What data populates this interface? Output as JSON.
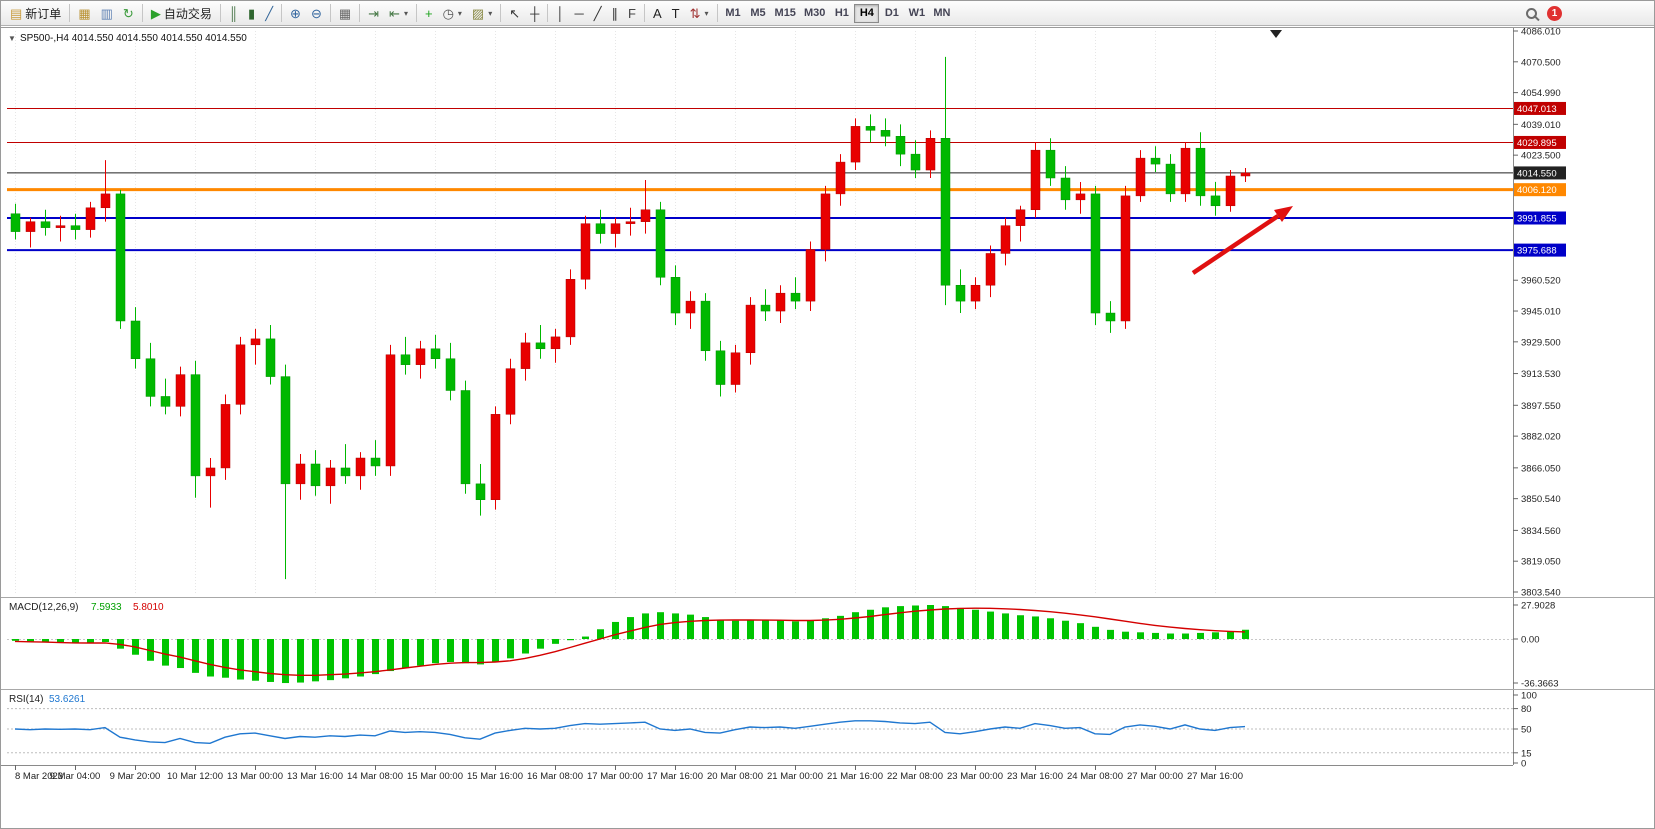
{
  "toolbar": {
    "notification_count": "1",
    "groups": [
      {
        "buttons": [
          {
            "name": "new-order",
            "glyph": "▤",
            "glyph_color": "#c89b3c",
            "label": "新订单"
          }
        ]
      },
      {
        "buttons": [
          {
            "name": "market-watch",
            "glyph": "▦",
            "glyph_color": "#b8902f"
          },
          {
            "name": "data-window",
            "glyph": "▥",
            "glyph_color": "#5f82b4"
          },
          {
            "name": "navigator",
            "glyph": "↻",
            "glyph_color": "#3a9a3a"
          }
        ]
      },
      {
        "buttons": [
          {
            "name": "autotrading",
            "glyph": "▶",
            "glyph_color": "#2ca02c",
            "label": "自动交易"
          }
        ]
      },
      {
        "buttons": [
          {
            "name": "bar-chart-type",
            "glyph": "║",
            "glyph_color": "#4f7a4f"
          },
          {
            "name": "candlestick-chart-type",
            "glyph": "▮",
            "glyph_color": "#2f662f"
          },
          {
            "name": "line-chart-type",
            "glyph": "╱",
            "glyph_color": "#336699"
          }
        ]
      },
      {
        "buttons": [
          {
            "name": "zoom-in",
            "glyph": "⊕",
            "glyph_color": "#33669f"
          },
          {
            "name": "zoom-out",
            "glyph": "⊖",
            "glyph_color": "#33669f"
          }
        ]
      },
      {
        "buttons": [
          {
            "name": "tile-windows",
            "glyph": "▦",
            "glyph_color": "#666666"
          }
        ]
      },
      {
        "buttons": [
          {
            "name": "auto-scroll",
            "glyph": "⇥",
            "glyph_color": "#447744"
          },
          {
            "name": "chart-shift",
            "glyph": "⇤",
            "glyph_color": "#447744",
            "dropdown": true
          }
        ]
      },
      {
        "buttons": [
          {
            "name": "indicators",
            "glyph": "+",
            "glyph_color": "#1fa41f"
          },
          {
            "name": "periods",
            "glyph": "◷",
            "glyph_color": "#555555",
            "dropdown": true
          },
          {
            "name": "templates",
            "glyph": "▨",
            "glyph_color": "#8a8a46",
            "dropdown": true
          }
        ]
      },
      {
        "buttons": [
          {
            "name": "cursor",
            "glyph": "↖",
            "glyph_color": "#333333"
          },
          {
            "name": "crosshair",
            "glyph": "┼",
            "glyph_color": "#333333"
          }
        ]
      },
      {
        "buttons": [
          {
            "name": "vertical-line",
            "glyph": "│",
            "glyph_color": "#333333"
          },
          {
            "name": "horizontal-line",
            "glyph": "─",
            "glyph_color": "#333333"
          },
          {
            "name": "trendline",
            "glyph": "╱",
            "glyph_color": "#333333"
          },
          {
            "name": "equidistant-channel",
            "glyph": "∥",
            "glyph_color": "#333333"
          },
          {
            "name": "fibonacci",
            "glyph": "F",
            "glyph_color": "#444444"
          }
        ]
      },
      {
        "buttons": [
          {
            "name": "text",
            "glyph": "A",
            "glyph_color": "#222222"
          },
          {
            "name": "text-label",
            "glyph": "T",
            "glyph_color": "#222222"
          },
          {
            "name": "arrows-objects",
            "glyph": "⇅",
            "glyph_color": "#a03333",
            "dropdown": true
          }
        ]
      }
    ],
    "timeframes": [
      "M1",
      "M5",
      "M15",
      "M30",
      "H1",
      "H4",
      "D1",
      "W1",
      "MN"
    ],
    "active_timeframe": "H4"
  },
  "chart_data": {
    "type": "candlestick",
    "symbol_period": "SP500-,H4",
    "ohlc_readout": "4014.550 4014.550 4014.550 4014.550",
    "colors": {
      "up": "#e80000",
      "down": "#00b800",
      "up_stroke": "#b00000",
      "down_stroke": "#009000"
    },
    "price_axis": {
      "ticks": [
        "4086.010",
        "4070.500",
        "4054.990",
        "4039.010",
        "4023.500",
        "3960.520",
        "3945.010",
        "3929.500",
        "3913.530",
        "3897.550",
        "3882.020",
        "3866.050",
        "3850.540",
        "3834.560",
        "3819.050",
        "3803.540"
      ],
      "max": 4086.01,
      "min": 3803.54
    },
    "price_lines": [
      {
        "name": "resistance-line-upper",
        "price": 4047.013,
        "label": "4047.013",
        "color": "#c00000",
        "width": 1,
        "style": "solid",
        "interactable": true
      },
      {
        "name": "resistance-line-lower",
        "price": 4029.895,
        "label": "4029.895",
        "color": "#c00000",
        "width": 1,
        "style": "solid",
        "interactable": true
      },
      {
        "name": "bid-price-line",
        "price": 4014.55,
        "label": "4014.550",
        "color": "#222222",
        "width": 1,
        "style": "solid",
        "interactable": false
      },
      {
        "name": "pivot-line",
        "price": 4006.12,
        "label": "4006.120",
        "color": "#ff8800",
        "width": 3,
        "style": "solid",
        "interactable": true
      },
      {
        "name": "support-line-upper",
        "price": 3991.855,
        "label": "3991.855",
        "color": "#0000c8",
        "width": 2,
        "style": "solid",
        "interactable": true
      },
      {
        "name": "support-line-lower",
        "price": 3975.688,
        "label": "3975.688",
        "color": "#0000c8",
        "width": 2,
        "style": "solid",
        "interactable": true
      }
    ],
    "time_labels": [
      "8 Mar 2023",
      "9 Mar 04:00",
      "9 Mar 20:00",
      "10 Mar 12:00",
      "13 Mar 00:00",
      "13 Mar 16:00",
      "14 Mar 08:00",
      "15 Mar 00:00",
      "15 Mar 16:00",
      "16 Mar 08:00",
      "17 Mar 00:00",
      "17 Mar 16:00",
      "20 Mar 08:00",
      "21 Mar 00:00",
      "21 Mar 16:00",
      "22 Mar 08:00",
      "23 Mar 00:00",
      "23 Mar 16:00",
      "24 Mar 08:00",
      "27 Mar 00:00",
      "27 Mar 16:00"
    ],
    "candles": [
      [
        3994,
        3999,
        3981,
        3985
      ],
      [
        3985,
        3992,
        3977,
        3990
      ],
      [
        3990,
        3996,
        3983,
        3987
      ],
      [
        3987,
        3993,
        3980,
        3988
      ],
      [
        3988,
        3994,
        3981,
        3986
      ],
      [
        3986,
        4000,
        3982,
        3997
      ],
      [
        3997,
        4021,
        3990,
        4004
      ],
      [
        4004,
        4006,
        3936,
        3940
      ],
      [
        3940,
        3947,
        3916,
        3921
      ],
      [
        3921,
        3929,
        3897,
        3902
      ],
      [
        3902,
        3911,
        3893,
        3897
      ],
      [
        3897,
        3917,
        3892,
        3913
      ],
      [
        3913,
        3920,
        3851,
        3862
      ],
      [
        3862,
        3871,
        3846,
        3866
      ],
      [
        3866,
        3903,
        3860,
        3898
      ],
      [
        3898,
        3932,
        3893,
        3928
      ],
      [
        3928,
        3936,
        3918,
        3931
      ],
      [
        3931,
        3938,
        3908,
        3912
      ],
      [
        3912,
        3918,
        3810,
        3858
      ],
      [
        3858,
        3873,
        3850,
        3868
      ],
      [
        3868,
        3875,
        3852,
        3857
      ],
      [
        3857,
        3870,
        3848,
        3866
      ],
      [
        3866,
        3878,
        3858,
        3862
      ],
      [
        3862,
        3874,
        3855,
        3871
      ],
      [
        3871,
        3880,
        3862,
        3867
      ],
      [
        3867,
        3928,
        3862,
        3923
      ],
      [
        3923,
        3932,
        3913,
        3918
      ],
      [
        3918,
        3930,
        3911,
        3926
      ],
      [
        3926,
        3933,
        3916,
        3921
      ],
      [
        3921,
        3929,
        3900,
        3905
      ],
      [
        3905,
        3910,
        3853,
        3858
      ],
      [
        3858,
        3868,
        3842,
        3850
      ],
      [
        3850,
        3897,
        3845,
        3893
      ],
      [
        3893,
        3921,
        3888,
        3916
      ],
      [
        3916,
        3934,
        3910,
        3929
      ],
      [
        3929,
        3938,
        3921,
        3926
      ],
      [
        3926,
        3936,
        3919,
        3932
      ],
      [
        3932,
        3966,
        3928,
        3961
      ],
      [
        3961,
        3993,
        3956,
        3989
      ],
      [
        3989,
        3996,
        3979,
        3984
      ],
      [
        3984,
        3992,
        3977,
        3989
      ],
      [
        3989,
        3997,
        3983,
        3990
      ],
      [
        3990,
        4011,
        3984,
        3996
      ],
      [
        3996,
        4000,
        3958,
        3962
      ],
      [
        3962,
        3968,
        3938,
        3944
      ],
      [
        3944,
        3955,
        3936,
        3950
      ],
      [
        3950,
        3954,
        3920,
        3925
      ],
      [
        3925,
        3930,
        3902,
        3908
      ],
      [
        3908,
        3928,
        3904,
        3924
      ],
      [
        3924,
        3952,
        3918,
        3948
      ],
      [
        3948,
        3956,
        3940,
        3945
      ],
      [
        3945,
        3958,
        3939,
        3954
      ],
      [
        3954,
        3962,
        3946,
        3950
      ],
      [
        3950,
        3980,
        3945,
        3976
      ],
      [
        3976,
        4008,
        3970,
        4004
      ],
      [
        4004,
        4024,
        3998,
        4020
      ],
      [
        4020,
        4042,
        4016,
        4038
      ],
      [
        4038,
        4044,
        4030,
        4036
      ],
      [
        4036,
        4042,
        4028,
        4033
      ],
      [
        4033,
        4039,
        4018,
        4024
      ],
      [
        4024,
        4031,
        4012,
        4016
      ],
      [
        4016,
        4036,
        4012,
        4032
      ],
      [
        4032,
        4073,
        3948,
        3958
      ],
      [
        3958,
        3966,
        3944,
        3950
      ],
      [
        3950,
        3962,
        3946,
        3958
      ],
      [
        3958,
        3978,
        3952,
        3974
      ],
      [
        3974,
        3992,
        3968,
        3988
      ],
      [
        3988,
        3998,
        3980,
        3996
      ],
      [
        3996,
        4030,
        3992,
        4026
      ],
      [
        4026,
        4032,
        4008,
        4012
      ],
      [
        4012,
        4018,
        3996,
        4001
      ],
      [
        4001,
        4010,
        3994,
        4004
      ],
      [
        4004,
        4008,
        3938,
        3944
      ],
      [
        3944,
        3950,
        3934,
        3940
      ],
      [
        3940,
        4008,
        3936,
        4003
      ],
      [
        4003,
        4026,
        4000,
        4022
      ],
      [
        4022,
        4028,
        4015,
        4019
      ],
      [
        4019,
        4024,
        4000,
        4004
      ],
      [
        4004,
        4030,
        4000,
        4027
      ],
      [
        4027,
        4035,
        3998,
        4003
      ],
      [
        4003,
        4010,
        3993,
        3998
      ],
      [
        3998,
        4016,
        3995,
        4013
      ],
      [
        4013,
        4017,
        4010,
        4014.55
      ]
    ],
    "macd": {
      "label": "MACD(12,26,9)",
      "value_main": "7.5933",
      "value_signal": "5.8010",
      "scale_max": 27.9028,
      "scale_min": -36.3663,
      "scale_max_label": "27.9028",
      "zero_label": "0.00",
      "scale_min_label": "-36.3663",
      "histogram_color": "#00c400",
      "signal_color": "#d40000",
      "histogram": [
        -1.5,
        -2,
        -2.5,
        -3,
        -3.5,
        -3,
        -2.5,
        -8,
        -13,
        -18,
        -22,
        -24,
        -28,
        -31,
        -32,
        -33.5,
        -34.5,
        -35.5,
        -36.4,
        -36,
        -35,
        -34,
        -32.5,
        -31,
        -29,
        -26.5,
        -24,
        -22,
        -20,
        -19,
        -20,
        -21,
        -19,
        -16,
        -12,
        -8,
        -4,
        -1,
        2,
        8,
        14,
        18,
        21,
        22,
        21,
        20,
        18,
        16,
        15,
        15.5,
        16,
        15.5,
        14.5,
        15,
        17,
        19,
        22,
        24,
        26,
        27,
        27.5,
        27.9,
        27,
        25.5,
        24,
        22.5,
        21,
        19.5,
        18.5,
        17,
        15,
        13,
        10,
        7.5,
        6,
        5.5,
        5,
        4.5,
        4.5,
        5,
        5.5,
        6.5,
        7.6
      ],
      "signal": [
        -2,
        -2.3,
        -2.6,
        -3,
        -3.2,
        -3.3,
        -3.2,
        -4.5,
        -6.5,
        -9.5,
        -12.5,
        -15,
        -18,
        -21,
        -23.5,
        -25.5,
        -27,
        -28.5,
        -29.5,
        -30,
        -30,
        -29.5,
        -29,
        -28,
        -27,
        -25.5,
        -24,
        -22.5,
        -21,
        -20,
        -19.5,
        -19.5,
        -19,
        -18,
        -16,
        -13.5,
        -10.5,
        -7,
        -3.5,
        0,
        3.5,
        6.5,
        9.5,
        12,
        13.5,
        14.5,
        15.2,
        15.5,
        15.6,
        15.6,
        15.5,
        15.4,
        15.2,
        15.2,
        15.5,
        16.2,
        17.2,
        18.5,
        20,
        21.5,
        22.8,
        23.8,
        24.6,
        25.1,
        25.3,
        25.2,
        24.8,
        24.2,
        23.4,
        22.4,
        21.2,
        19.8,
        18.2,
        16.4,
        14.6,
        12.8,
        11.2,
        9.8,
        8.6,
        7.6,
        6.8,
        6.2,
        5.8
      ]
    },
    "rsi": {
      "label": "RSI(14)",
      "value": "53.6261",
      "line_color": "#1f77d0",
      "levels": [
        {
          "label": "100",
          "value": 100
        },
        {
          "label": "80",
          "value": 80
        },
        {
          "label": "50",
          "value": 50
        },
        {
          "label": "15",
          "value": 15
        },
        {
          "label": "0",
          "value": 0
        }
      ],
      "values": [
        50,
        49,
        50,
        49.5,
        50,
        49,
        52,
        38,
        34,
        31,
        30,
        36,
        30,
        29,
        38,
        43,
        44,
        40,
        36,
        39,
        38,
        40,
        39,
        41,
        40,
        47,
        45,
        46,
        45,
        42,
        37,
        35,
        44,
        48,
        51,
        50,
        51,
        55,
        58,
        57,
        58,
        59,
        60,
        50,
        48,
        50,
        45,
        44,
        49,
        53,
        52,
        53,
        51,
        54,
        57,
        60,
        62,
        62,
        61,
        59,
        58,
        60,
        45,
        43,
        46,
        50,
        53,
        51,
        58,
        55,
        51,
        52,
        43,
        42,
        53,
        56,
        54,
        50,
        56,
        50,
        48,
        52,
        53.6
      ]
    },
    "annotation": {
      "arrow_color": "#e01010"
    }
  }
}
